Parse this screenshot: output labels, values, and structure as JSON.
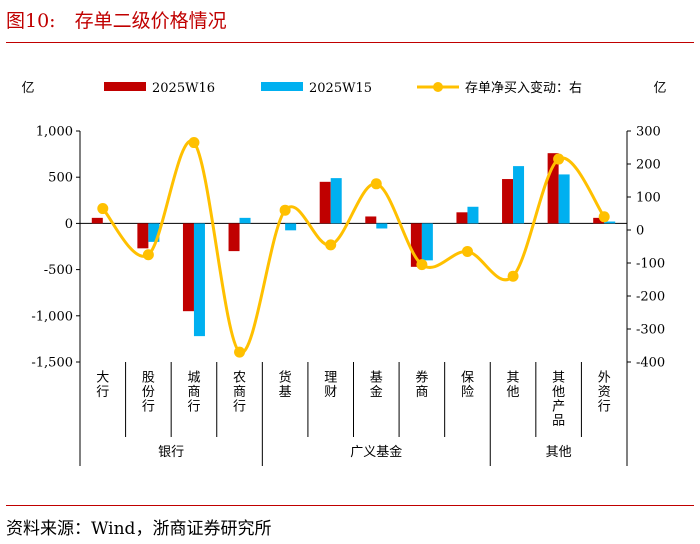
{
  "figure": {
    "title": "图10:　存单二级价格情况",
    "source": "资料来源：Wind，浙商证券研究所"
  },
  "colors": {
    "w16": "#c00000",
    "w15": "#00b0f0",
    "line": "#ffc000",
    "accent": "#c00000"
  },
  "chart_data": {
    "type": "bar",
    "categories": [
      "大行",
      "股份行",
      "城商行",
      "农商行",
      "货基",
      "理财",
      "基金",
      "券商",
      "保险",
      "其他",
      "其他产品",
      "外资行"
    ],
    "groups": [
      {
        "label": "银行",
        "categories": [
          "大行",
          "股份行",
          "城商行",
          "农商行"
        ]
      },
      {
        "label": "广义基金",
        "categories": [
          "货基",
          "理财",
          "基金",
          "券商",
          "保险"
        ]
      },
      {
        "label": "其他",
        "categories": [
          "其他",
          "其他产品",
          "外资行"
        ]
      }
    ],
    "left_unit": "亿",
    "right_unit": "亿",
    "series": [
      {
        "name": "2025W16",
        "type": "bar",
        "axis": "left",
        "values": [
          60,
          -270,
          -950,
          -300,
          0,
          450,
          75,
          -470,
          120,
          480,
          760,
          60
        ]
      },
      {
        "name": "2025W15",
        "type": "bar",
        "axis": "left",
        "values": [
          0,
          -200,
          -1220,
          60,
          -75,
          490,
          -55,
          -400,
          180,
          620,
          530,
          20
        ]
      },
      {
        "name": "存单净买入变动：右",
        "type": "line",
        "axis": "right",
        "values": [
          65,
          -75,
          265,
          -370,
          60,
          -45,
          140,
          -105,
          -65,
          -140,
          215,
          40
        ]
      }
    ],
    "left_axis": {
      "min": -1500,
      "max": 1000,
      "ticks": [
        1000,
        500,
        0,
        -500,
        -1000,
        -1500
      ],
      "tick_labels": [
        "1,000",
        "500",
        "0",
        "-500",
        "-1,000",
        "-1,500"
      ]
    },
    "right_axis": {
      "min": -400,
      "max": 300,
      "ticks": [
        300,
        200,
        100,
        0,
        -100,
        -200,
        -300,
        -400
      ],
      "tick_labels": [
        "300",
        "200",
        "100",
        "0",
        "-100",
        "-200",
        "-300",
        "-400"
      ]
    },
    "legend_position": "top",
    "grid": false
  }
}
